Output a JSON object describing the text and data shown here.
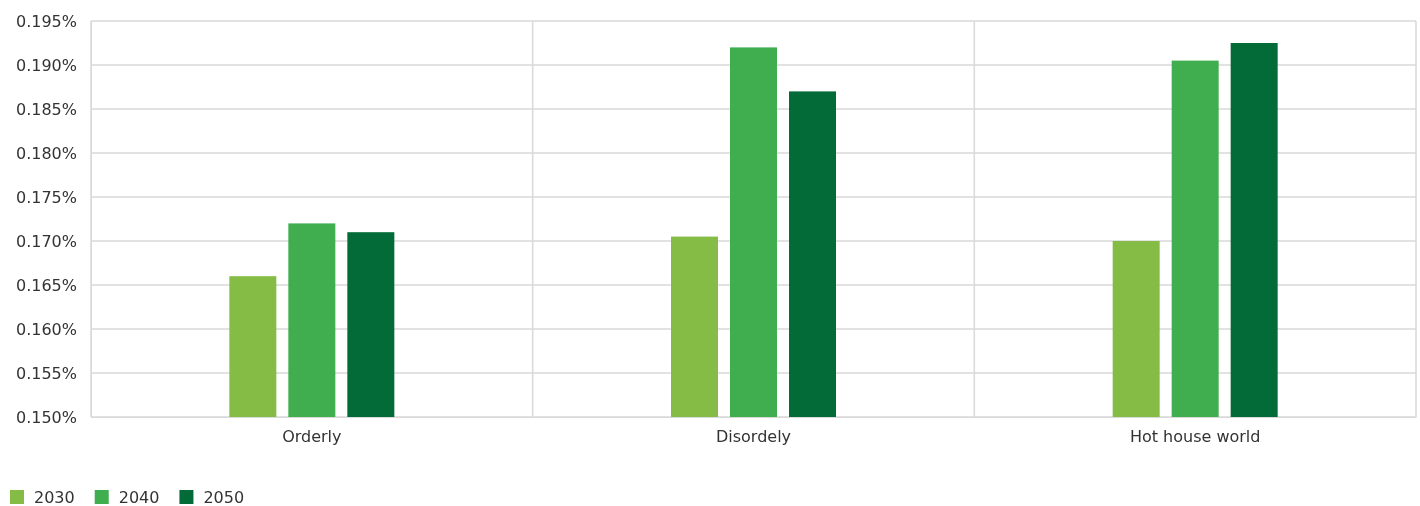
{
  "chart_data": {
    "type": "bar",
    "categories": [
      "Orderly",
      "Disordely",
      "Hot house world"
    ],
    "series": [
      {
        "name": "2030",
        "color": "#84bc45",
        "values": [
          0.166,
          0.1705,
          0.17
        ]
      },
      {
        "name": "2040",
        "color": "#40ad4f",
        "values": [
          0.172,
          0.192,
          0.1905
        ]
      },
      {
        "name": "2050",
        "color": "#026b37",
        "values": [
          0.171,
          0.187,
          0.1925
        ]
      }
    ],
    "ylim": [
      0.15,
      0.195
    ],
    "yticks": [
      {
        "value": 0.15,
        "label": "0.150%"
      },
      {
        "value": 0.155,
        "label": "0.155%"
      },
      {
        "value": 0.16,
        "label": "0.160%"
      },
      {
        "value": 0.165,
        "label": "0.165%"
      },
      {
        "value": 0.17,
        "label": "0.170%"
      },
      {
        "value": 0.175,
        "label": "0.175%"
      },
      {
        "value": 0.18,
        "label": "0.180%"
      },
      {
        "value": 0.185,
        "label": "0.185%"
      },
      {
        "value": 0.19,
        "label": "0.190%"
      },
      {
        "value": 0.195,
        "label": "0.195%"
      }
    ],
    "grid": true,
    "legend": "bottom left"
  }
}
